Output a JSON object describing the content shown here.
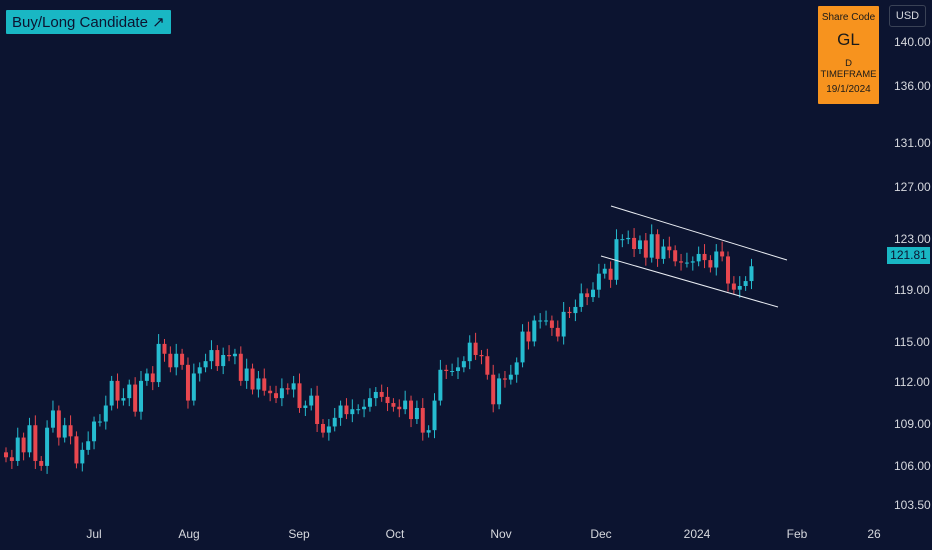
{
  "header": {
    "signal_label": "Buy/Long Candidate ↗"
  },
  "info_box": {
    "title": "Share Code",
    "code": "GL",
    "timeframe": "D TIMEFRAME",
    "date": "19/1/2024"
  },
  "currency": "USD",
  "last_price": "121.81",
  "colors": {
    "background": "#0c1430",
    "up": "#26bcd0",
    "down": "#e8474f",
    "accent": "#19b7c4",
    "info_box": "#f7931e",
    "channel": "#e9ecf2"
  },
  "chart_data": {
    "type": "candlestick",
    "x_tick_labels": [
      "Jul",
      "Aug",
      "Sep",
      "Oct",
      "Nov",
      "Dec",
      "2024",
      "Feb",
      "26"
    ],
    "y_tick_labels": [
      "140.00",
      "136.00",
      "131.00",
      "127.00",
      "123.00",
      "119.00",
      "115.00",
      "112.00",
      "109.00",
      "106.00",
      "103.50"
    ],
    "series": [
      {
        "values": [
          106.3,
          106.0,
          107.9,
          106.7,
          108.9,
          106.0,
          105.6,
          108.7,
          110.1,
          107.9,
          108.9,
          108.0,
          105.8,
          106.9,
          107.6,
          109.2,
          109.2,
          110.5,
          112.5,
          110.9,
          111.1,
          112.2,
          110.0,
          112.5,
          113.1,
          112.4,
          115.5,
          114.7,
          113.6,
          114.7,
          113.8,
          110.9,
          113.1,
          113.6,
          114.1,
          115.0,
          113.7,
          114.6,
          114.5,
          114.7,
          112.5,
          113.5,
          111.8,
          112.7,
          111.7,
          111.5,
          111.1,
          111.9,
          111.8,
          112.3,
          110.3,
          110.5,
          111.3,
          109.0,
          108.3,
          108.8,
          109.5,
          110.5,
          109.8,
          110.2,
          110.2,
          110.4,
          111.1,
          111.6,
          111.2,
          110.7,
          110.4,
          110.2,
          110.9,
          109.4,
          110.3,
          108.3,
          108.5,
          110.9,
          113.4,
          113.3,
          113.3,
          113.6,
          114.1,
          115.6,
          114.6,
          114.5,
          113.0,
          110.6,
          112.7,
          112.6,
          113.0,
          114.0,
          116.5,
          115.7,
          117.4,
          117.4,
          117.4,
          116.8,
          116.1,
          118.1,
          118.0,
          118.5,
          119.6,
          119.3,
          119.9,
          121.2,
          121.6,
          120.7,
          124.0,
          124.0,
          124.1,
          123.2,
          123.9,
          122.5,
          124.4,
          122.4,
          123.4,
          123.1,
          122.2,
          122.1,
          122.1,
          122.2,
          122.8,
          122.3,
          121.7,
          123.0,
          122.6,
          120.4,
          119.9,
          120.2,
          120.6,
          121.8
        ],
        "open": [
          106.7,
          106.3,
          106.0,
          107.9,
          106.7,
          108.9,
          106.0,
          105.6,
          108.7,
          110.1,
          107.9,
          108.9,
          108.0,
          105.8,
          106.9,
          107.6,
          109.2,
          109.2,
          110.5,
          112.5,
          110.9,
          111.1,
          112.2,
          110.0,
          112.5,
          113.1,
          112.4,
          115.5,
          114.7,
          113.6,
          114.7,
          113.8,
          110.9,
          113.1,
          113.6,
          114.1,
          115.0,
          113.7,
          114.6,
          114.5,
          114.7,
          112.5,
          113.5,
          111.8,
          112.7,
          111.7,
          111.5,
          111.1,
          111.9,
          111.8,
          112.3,
          110.3,
          110.5,
          111.3,
          109.0,
          108.3,
          108.8,
          109.5,
          110.5,
          109.8,
          110.2,
          110.2,
          110.4,
          111.1,
          111.6,
          111.2,
          110.7,
          110.4,
          110.2,
          110.9,
          109.4,
          110.3,
          108.3,
          108.5,
          110.9,
          113.4,
          113.3,
          113.3,
          113.6,
          114.1,
          115.6,
          114.6,
          114.5,
          113.0,
          110.6,
          112.7,
          112.6,
          113.0,
          114.0,
          116.5,
          115.7,
          117.4,
          117.4,
          117.4,
          116.8,
          116.1,
          118.1,
          118.0,
          118.5,
          119.6,
          119.3,
          119.9,
          121.2,
          121.6,
          120.7,
          124.0,
          124.0,
          124.1,
          123.2,
          123.9,
          122.5,
          124.4,
          122.4,
          123.4,
          123.1,
          122.2,
          122.1,
          122.1,
          122.2,
          122.8,
          122.3,
          121.7,
          123.0,
          122.6,
          120.4,
          119.9,
          120.2,
          120.6
        ]
      }
    ],
    "annotations": [
      "descending channel"
    ]
  }
}
